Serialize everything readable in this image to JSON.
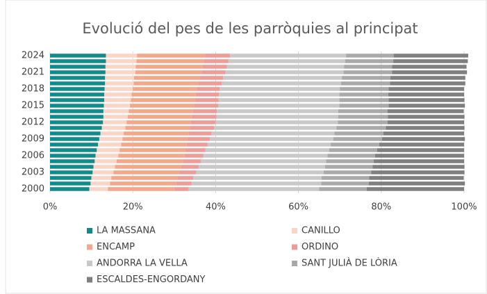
{
  "chart_data": {
    "type": "stacked-bar-horizontal",
    "title": "Evolució del pes de les parròquies al principat",
    "categories": [
      "2000",
      null,
      null,
      "2003",
      null,
      null,
      "2006",
      null,
      null,
      "2009",
      null,
      null,
      "2012",
      null,
      null,
      "2015",
      null,
      null,
      "2018",
      null,
      null,
      "2021",
      null,
      null,
      "2024"
    ],
    "series": [
      {
        "name": "LA MASSANA",
        "color": "#138a8a",
        "values": [
          9.5,
          9.8,
          10.0,
          10.3,
          10.5,
          10.8,
          11.0,
          11.3,
          11.6,
          11.9,
          12.2,
          12.5,
          12.8,
          12.9,
          12.9,
          13.0,
          13.1,
          13.1,
          13.2,
          13.3,
          13.3,
          13.4,
          13.4,
          13.5,
          13.5
        ]
      },
      {
        "name": "CANILLO",
        "color": "#fbd5c8",
        "values": [
          4.5,
          4.7,
          4.8,
          5.0,
          5.2,
          5.3,
          5.5,
          5.5,
          5.6,
          5.6,
          5.6,
          5.7,
          5.7,
          5.9,
          6.1,
          6.3,
          6.4,
          6.6,
          6.8,
          6.9,
          7.0,
          7.2,
          7.3,
          7.4,
          7.5
        ]
      },
      {
        "name": "ENCAMP",
        "color": "#f4a58a",
        "values": [
          16,
          16,
          16,
          16,
          16,
          16,
          16,
          15.9,
          15.8,
          15.8,
          15.7,
          15.6,
          15.5,
          15.5,
          15.5,
          15.5,
          15.5,
          15.5,
          15.5,
          15.7,
          15.8,
          16.0,
          16.2,
          16.3,
          16.5
        ]
      },
      {
        "name": "ORDINO",
        "color": "#ee9b98",
        "values": [
          3.5,
          3.7,
          3.8,
          4.0,
          4.2,
          4.3,
          4.5,
          4.8,
          5.0,
          5.3,
          5.5,
          5.8,
          6.0,
          5.9,
          5.8,
          5.8,
          5.7,
          5.6,
          5.5,
          5.6,
          5.7,
          5.8,
          5.8,
          5.9,
          6.0
        ]
      },
      {
        "name": "ANDORRA LA VELLA",
        "color": "#c9c9c9",
        "values": [
          31.5,
          31.3,
          31.0,
          30.8,
          30.5,
          30.3,
          30.0,
          29.9,
          29.8,
          29.8,
          29.7,
          29.6,
          29.5,
          29.4,
          29.3,
          29.3,
          29.2,
          29.1,
          29.0,
          28.8,
          28.7,
          28.5,
          28.3,
          28.2,
          28.0
        ]
      },
      {
        "name": "SANT JULIÀ DE LÒRIA",
        "color": "#a9a9a9",
        "values": [
          11.5,
          11.5,
          11.5,
          11.5,
          11.5,
          11.5,
          11.5,
          11.6,
          11.7,
          11.8,
          11.8,
          11.9,
          12.0,
          12.0,
          11.9,
          11.9,
          11.9,
          11.8,
          11.8,
          11.8,
          11.7,
          11.7,
          11.6,
          11.6,
          11.5
        ]
      },
      {
        "name": "ESCALDES-ENGORDANY",
        "color": "#7f7f7f",
        "values": [
          23.5,
          23.2,
          22.8,
          22.5,
          22.2,
          21.8,
          21.5,
          21.0,
          20.5,
          20.0,
          19.5,
          19.0,
          18.5,
          18.5,
          18.4,
          18.4,
          18.3,
          18.3,
          18.2,
          18.2,
          18.1,
          18.1,
          18.0,
          18.0,
          18.0
        ]
      }
    ],
    "xlim": [
      0,
      100
    ],
    "xticks": [
      {
        "value": 0,
        "label": "0%"
      },
      {
        "value": 20,
        "label": "20%"
      },
      {
        "value": 40,
        "label": "40%"
      },
      {
        "value": 60,
        "label": "60%"
      },
      {
        "value": 80,
        "label": "80%"
      },
      {
        "value": 100,
        "label": "100%"
      }
    ],
    "grid": true
  }
}
